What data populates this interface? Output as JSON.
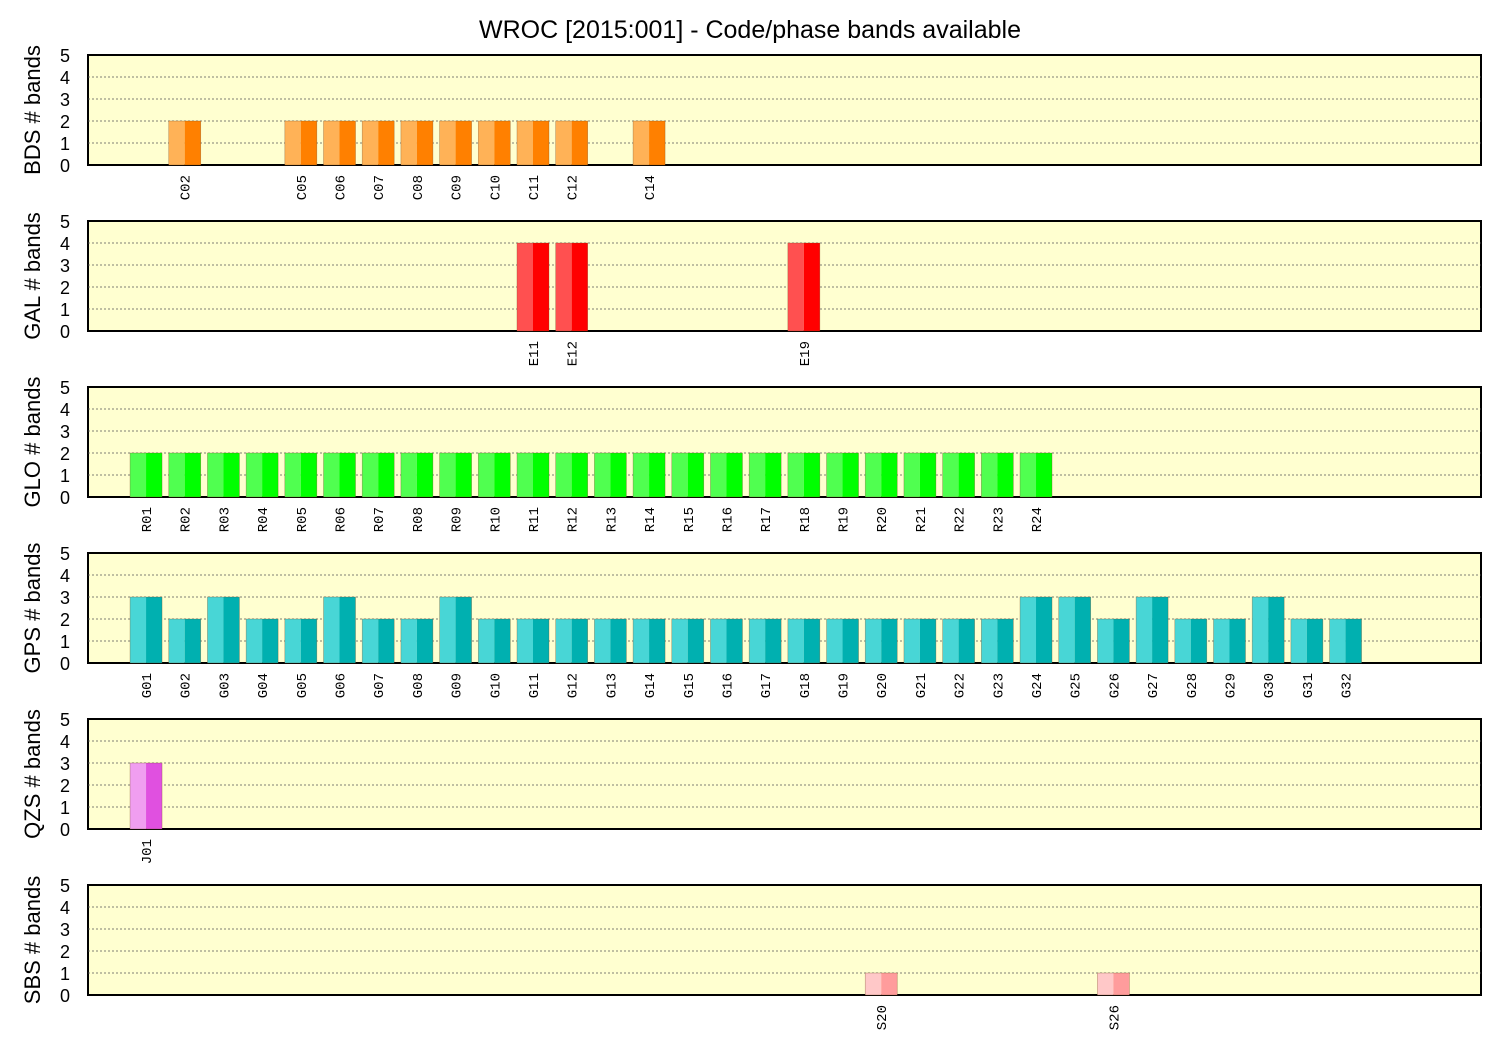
{
  "title": "WROC [2015:001] - Code/phase bands available",
  "chart_data": [
    {
      "type": "bar",
      "ylabel": "BDS # bands",
      "ylim": [
        0,
        5
      ],
      "yticks": [
        0,
        1,
        2,
        3,
        4,
        5
      ],
      "grid": true,
      "colors": {
        "light": "#ffb257",
        "dark": "#ff8000"
      },
      "x": [
        3,
        6,
        7,
        8,
        9,
        10,
        11,
        12,
        13,
        15
      ],
      "categories": [
        "C02",
        "C05",
        "C06",
        "C07",
        "C08",
        "C09",
        "C10",
        "C11",
        "C12",
        "C14"
      ],
      "values": [
        2,
        2,
        2,
        2,
        2,
        2,
        2,
        2,
        2,
        2
      ]
    },
    {
      "type": "bar",
      "ylabel": "GAL # bands",
      "ylim": [
        0,
        5
      ],
      "yticks": [
        0,
        1,
        2,
        3,
        4,
        5
      ],
      "grid": true,
      "colors": {
        "light": "#ff5050",
        "dark": "#ff0000"
      },
      "x": [
        12,
        13,
        19
      ],
      "categories": [
        "E11",
        "E12",
        "E19"
      ],
      "values": [
        4,
        4,
        4
      ]
    },
    {
      "type": "bar",
      "ylabel": "GLO # bands",
      "ylim": [
        0,
        5
      ],
      "yticks": [
        0,
        1,
        2,
        3,
        4,
        5
      ],
      "grid": true,
      "colors": {
        "light": "#50ff50",
        "dark": "#00ff00"
      },
      "x": [
        2,
        3,
        4,
        5,
        6,
        7,
        8,
        9,
        10,
        11,
        12,
        13,
        14,
        15,
        16,
        17,
        18,
        19,
        20,
        21,
        22,
        23,
        24,
        25
      ],
      "categories": [
        "R01",
        "R02",
        "R03",
        "R04",
        "R05",
        "R06",
        "R07",
        "R08",
        "R09",
        "R10",
        "R11",
        "R12",
        "R13",
        "R14",
        "R15",
        "R16",
        "R17",
        "R18",
        "R19",
        "R20",
        "R21",
        "R22",
        "R23",
        "R24"
      ],
      "values": [
        2,
        2,
        2,
        2,
        2,
        2,
        2,
        2,
        2,
        2,
        2,
        2,
        2,
        2,
        2,
        2,
        2,
        2,
        2,
        2,
        2,
        2,
        2,
        2
      ]
    },
    {
      "type": "bar",
      "ylabel": "GPS # bands",
      "ylim": [
        0,
        5
      ],
      "yticks": [
        0,
        1,
        2,
        3,
        4,
        5
      ],
      "grid": true,
      "colors": {
        "light": "#48d6d6",
        "dark": "#00b0b0"
      },
      "x": [
        2,
        3,
        4,
        5,
        6,
        7,
        8,
        9,
        10,
        11,
        12,
        13,
        14,
        15,
        16,
        17,
        18,
        19,
        20,
        21,
        22,
        23,
        24,
        25,
        26,
        27,
        28,
        29,
        30,
        31,
        32,
        33
      ],
      "categories": [
        "G01",
        "G02",
        "G03",
        "G04",
        "G05",
        "G06",
        "G07",
        "G08",
        "G09",
        "G10",
        "G11",
        "G12",
        "G13",
        "G14",
        "G15",
        "G16",
        "G17",
        "G18",
        "G19",
        "G20",
        "G21",
        "G22",
        "G23",
        "G24",
        "G25",
        "G26",
        "G27",
        "G28",
        "G29",
        "G30",
        "G31",
        "G32"
      ],
      "values": [
        3,
        2,
        3,
        2,
        2,
        3,
        2,
        2,
        3,
        2,
        2,
        2,
        2,
        2,
        2,
        2,
        2,
        2,
        2,
        2,
        2,
        2,
        2,
        3,
        3,
        2,
        3,
        2,
        2,
        3,
        2,
        2
      ]
    },
    {
      "type": "bar",
      "ylabel": "QZS # bands",
      "ylim": [
        0,
        5
      ],
      "yticks": [
        0,
        1,
        2,
        3,
        4,
        5
      ],
      "grid": true,
      "colors": {
        "light": "#f09ef0",
        "dark": "#e050e0"
      },
      "x": [
        2
      ],
      "categories": [
        "J01"
      ],
      "values": [
        3
      ]
    },
    {
      "type": "bar",
      "ylabel": "SBS # bands",
      "ylim": [
        0,
        5
      ],
      "yticks": [
        0,
        1,
        2,
        3,
        4,
        5
      ],
      "grid": true,
      "colors": {
        "light": "#ffc8c8",
        "dark": "#ff9c9c"
      },
      "x": [
        21,
        27
      ],
      "categories": [
        "S20",
        "S26"
      ],
      "values": [
        1,
        1
      ]
    }
  ]
}
